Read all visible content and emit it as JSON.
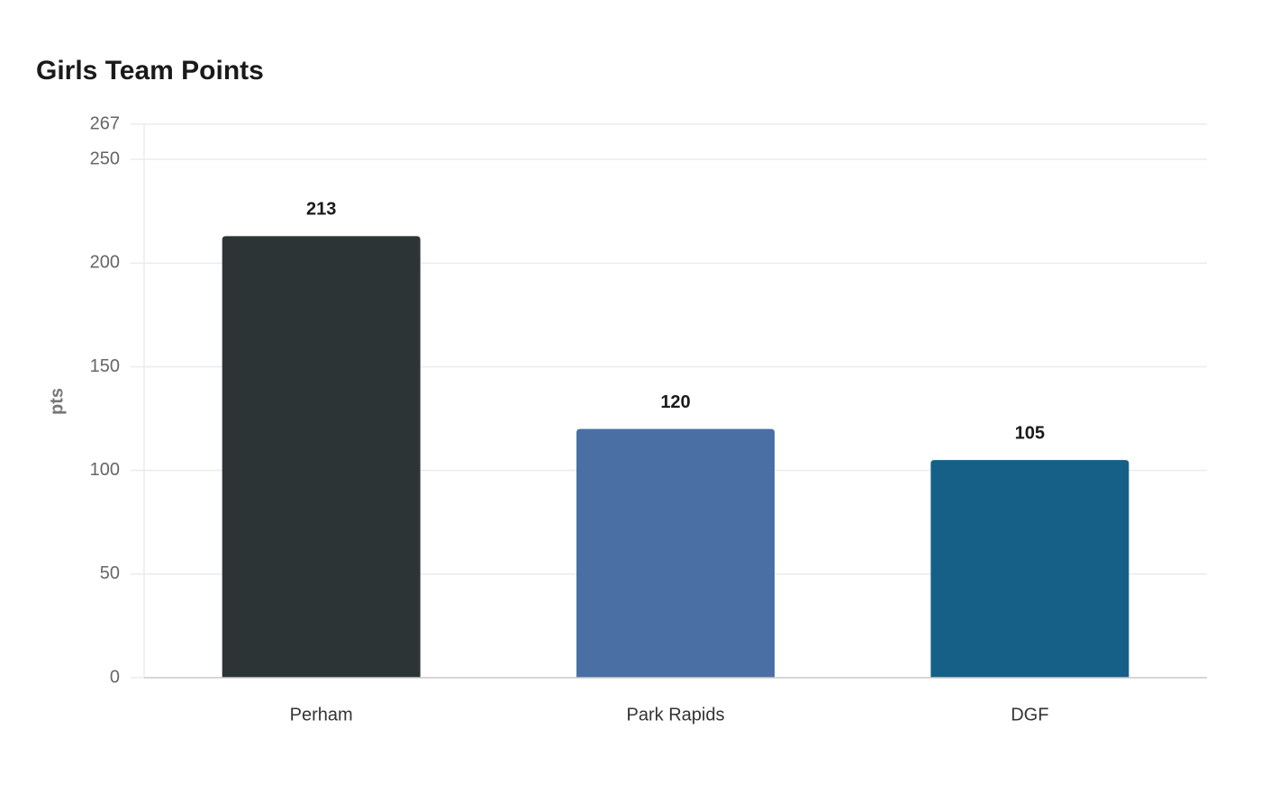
{
  "chart_data": {
    "type": "bar",
    "title": "Girls Team Points",
    "y_label": "pts",
    "categories": [
      "Perham",
      "Park Rapids",
      "DGF"
    ],
    "values": [
      213,
      120,
      105
    ],
    "colors": [
      "#2d3436",
      "#4a6fa5",
      "#166088"
    ],
    "ylim": [
      0,
      267
    ],
    "yticks": [
      0,
      50,
      100,
      150,
      200,
      250,
      267
    ],
    "grid": true
  }
}
